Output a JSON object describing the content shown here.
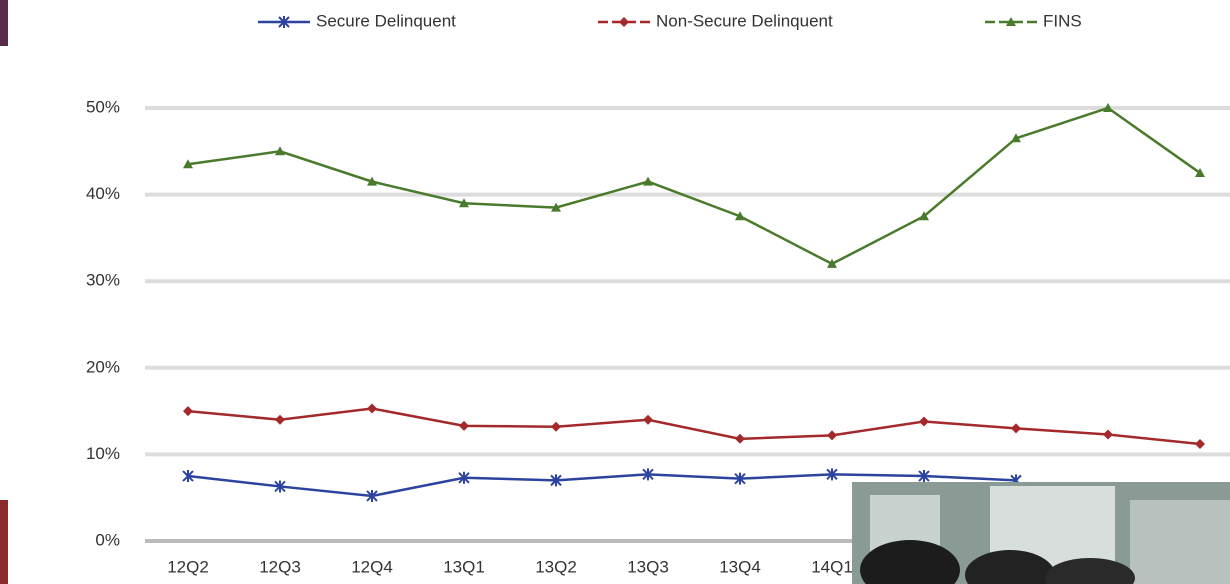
{
  "chart_data": {
    "type": "line",
    "categories": [
      "12Q2",
      "12Q3",
      "12Q4",
      "13Q1",
      "13Q2",
      "13Q3",
      "13Q4",
      "14Q1",
      null,
      null,
      null,
      null
    ],
    "series": [
      {
        "name": "Secure Delinquent",
        "color": "#2d43a0",
        "values": [
          7.5,
          6.3,
          5.2,
          7.3,
          7.0,
          7.7,
          7.2,
          7.7,
          7.5,
          7.0,
          null,
          null
        ]
      },
      {
        "name": "Non-Secure Delinquent",
        "color": "#a3292b",
        "values": [
          15.0,
          14.0,
          15.3,
          13.3,
          13.2,
          14.0,
          11.8,
          12.2,
          13.8,
          13.0,
          12.3,
          11.2
        ]
      },
      {
        "name": "FINS",
        "color": "#4a7a2c",
        "values": [
          43.5,
          45.0,
          41.5,
          39.0,
          38.5,
          41.5,
          37.5,
          32.0,
          37.5,
          46.5,
          50.0,
          42.5
        ]
      }
    ],
    "ylim": [
      0,
      50
    ],
    "yticks": [
      {
        "value": 0,
        "label": "0%"
      },
      {
        "value": 10,
        "label": "10%"
      },
      {
        "value": 20,
        "label": "20%"
      },
      {
        "value": 30,
        "label": "30%"
      },
      {
        "value": 40,
        "label": "40%"
      },
      {
        "value": 50,
        "label": "50%"
      }
    ],
    "grid": true
  }
}
